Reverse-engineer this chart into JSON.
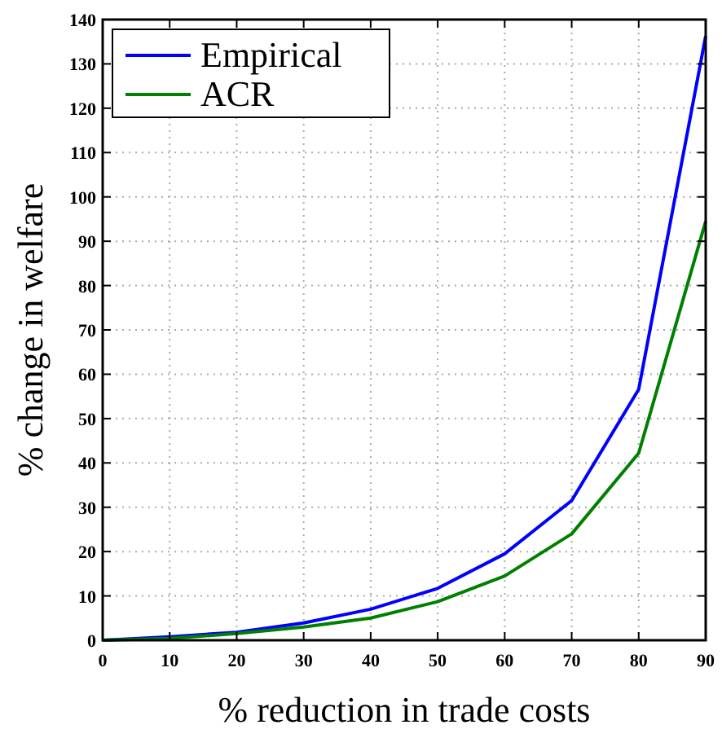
{
  "chart_data": {
    "type": "line",
    "xlabel": "% reduction in trade costs",
    "ylabel": "% change in welfare",
    "x": [
      0,
      10,
      20,
      30,
      40,
      50,
      60,
      70,
      80,
      90
    ],
    "series": [
      {
        "name": "Empirical",
        "color": "#0000ff",
        "values": [
          0,
          0.8,
          1.8,
          3.9,
          7,
          11.7,
          19.5,
          31.5,
          56.6,
          136.3
        ]
      },
      {
        "name": "ACR",
        "color": "#008000",
        "values": [
          0,
          0.4,
          1.5,
          3,
          5,
          8.7,
          14.5,
          24,
          42.2,
          94.5
        ]
      }
    ],
    "xlim": [
      0,
      90
    ],
    "ylim": [
      0,
      140
    ],
    "xticks": [
      0,
      10,
      20,
      30,
      40,
      50,
      60,
      70,
      80,
      90
    ],
    "yticks": [
      0,
      10,
      20,
      30,
      40,
      50,
      60,
      70,
      80,
      90,
      100,
      110,
      120,
      130,
      140
    ],
    "grid": true,
    "legend": "top left",
    "line_style": "solid",
    "marker": "none"
  }
}
